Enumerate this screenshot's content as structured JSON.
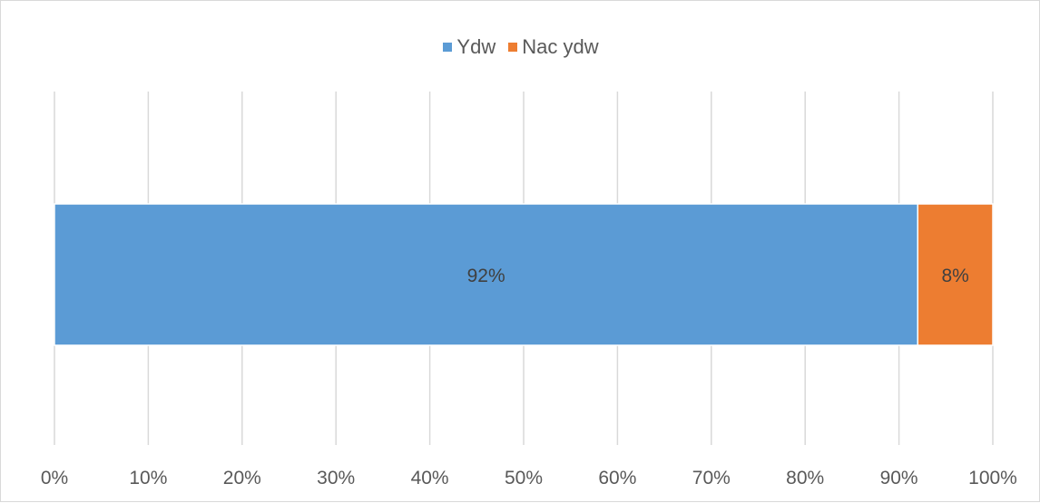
{
  "chart_data": {
    "type": "bar",
    "orientation": "horizontal",
    "stacking": "percent",
    "categories": [
      ""
    ],
    "series": [
      {
        "name": "Ydw",
        "values": [
          92
        ],
        "label": "92%",
        "color": "#5b9bd5"
      },
      {
        "name": "Nac ydw",
        "values": [
          8
        ],
        "label": "8%",
        "color": "#ed7d31"
      }
    ],
    "xlim": [
      0,
      100
    ],
    "x_ticks": [
      0,
      10,
      20,
      30,
      40,
      50,
      60,
      70,
      80,
      90,
      100
    ],
    "x_tick_labels": [
      "0%",
      "10%",
      "20%",
      "30%",
      "40%",
      "50%",
      "60%",
      "70%",
      "80%",
      "90%",
      "100%"
    ],
    "grid": "vertical",
    "legend_position": "top",
    "title": "",
    "xlabel": "",
    "ylabel": ""
  }
}
